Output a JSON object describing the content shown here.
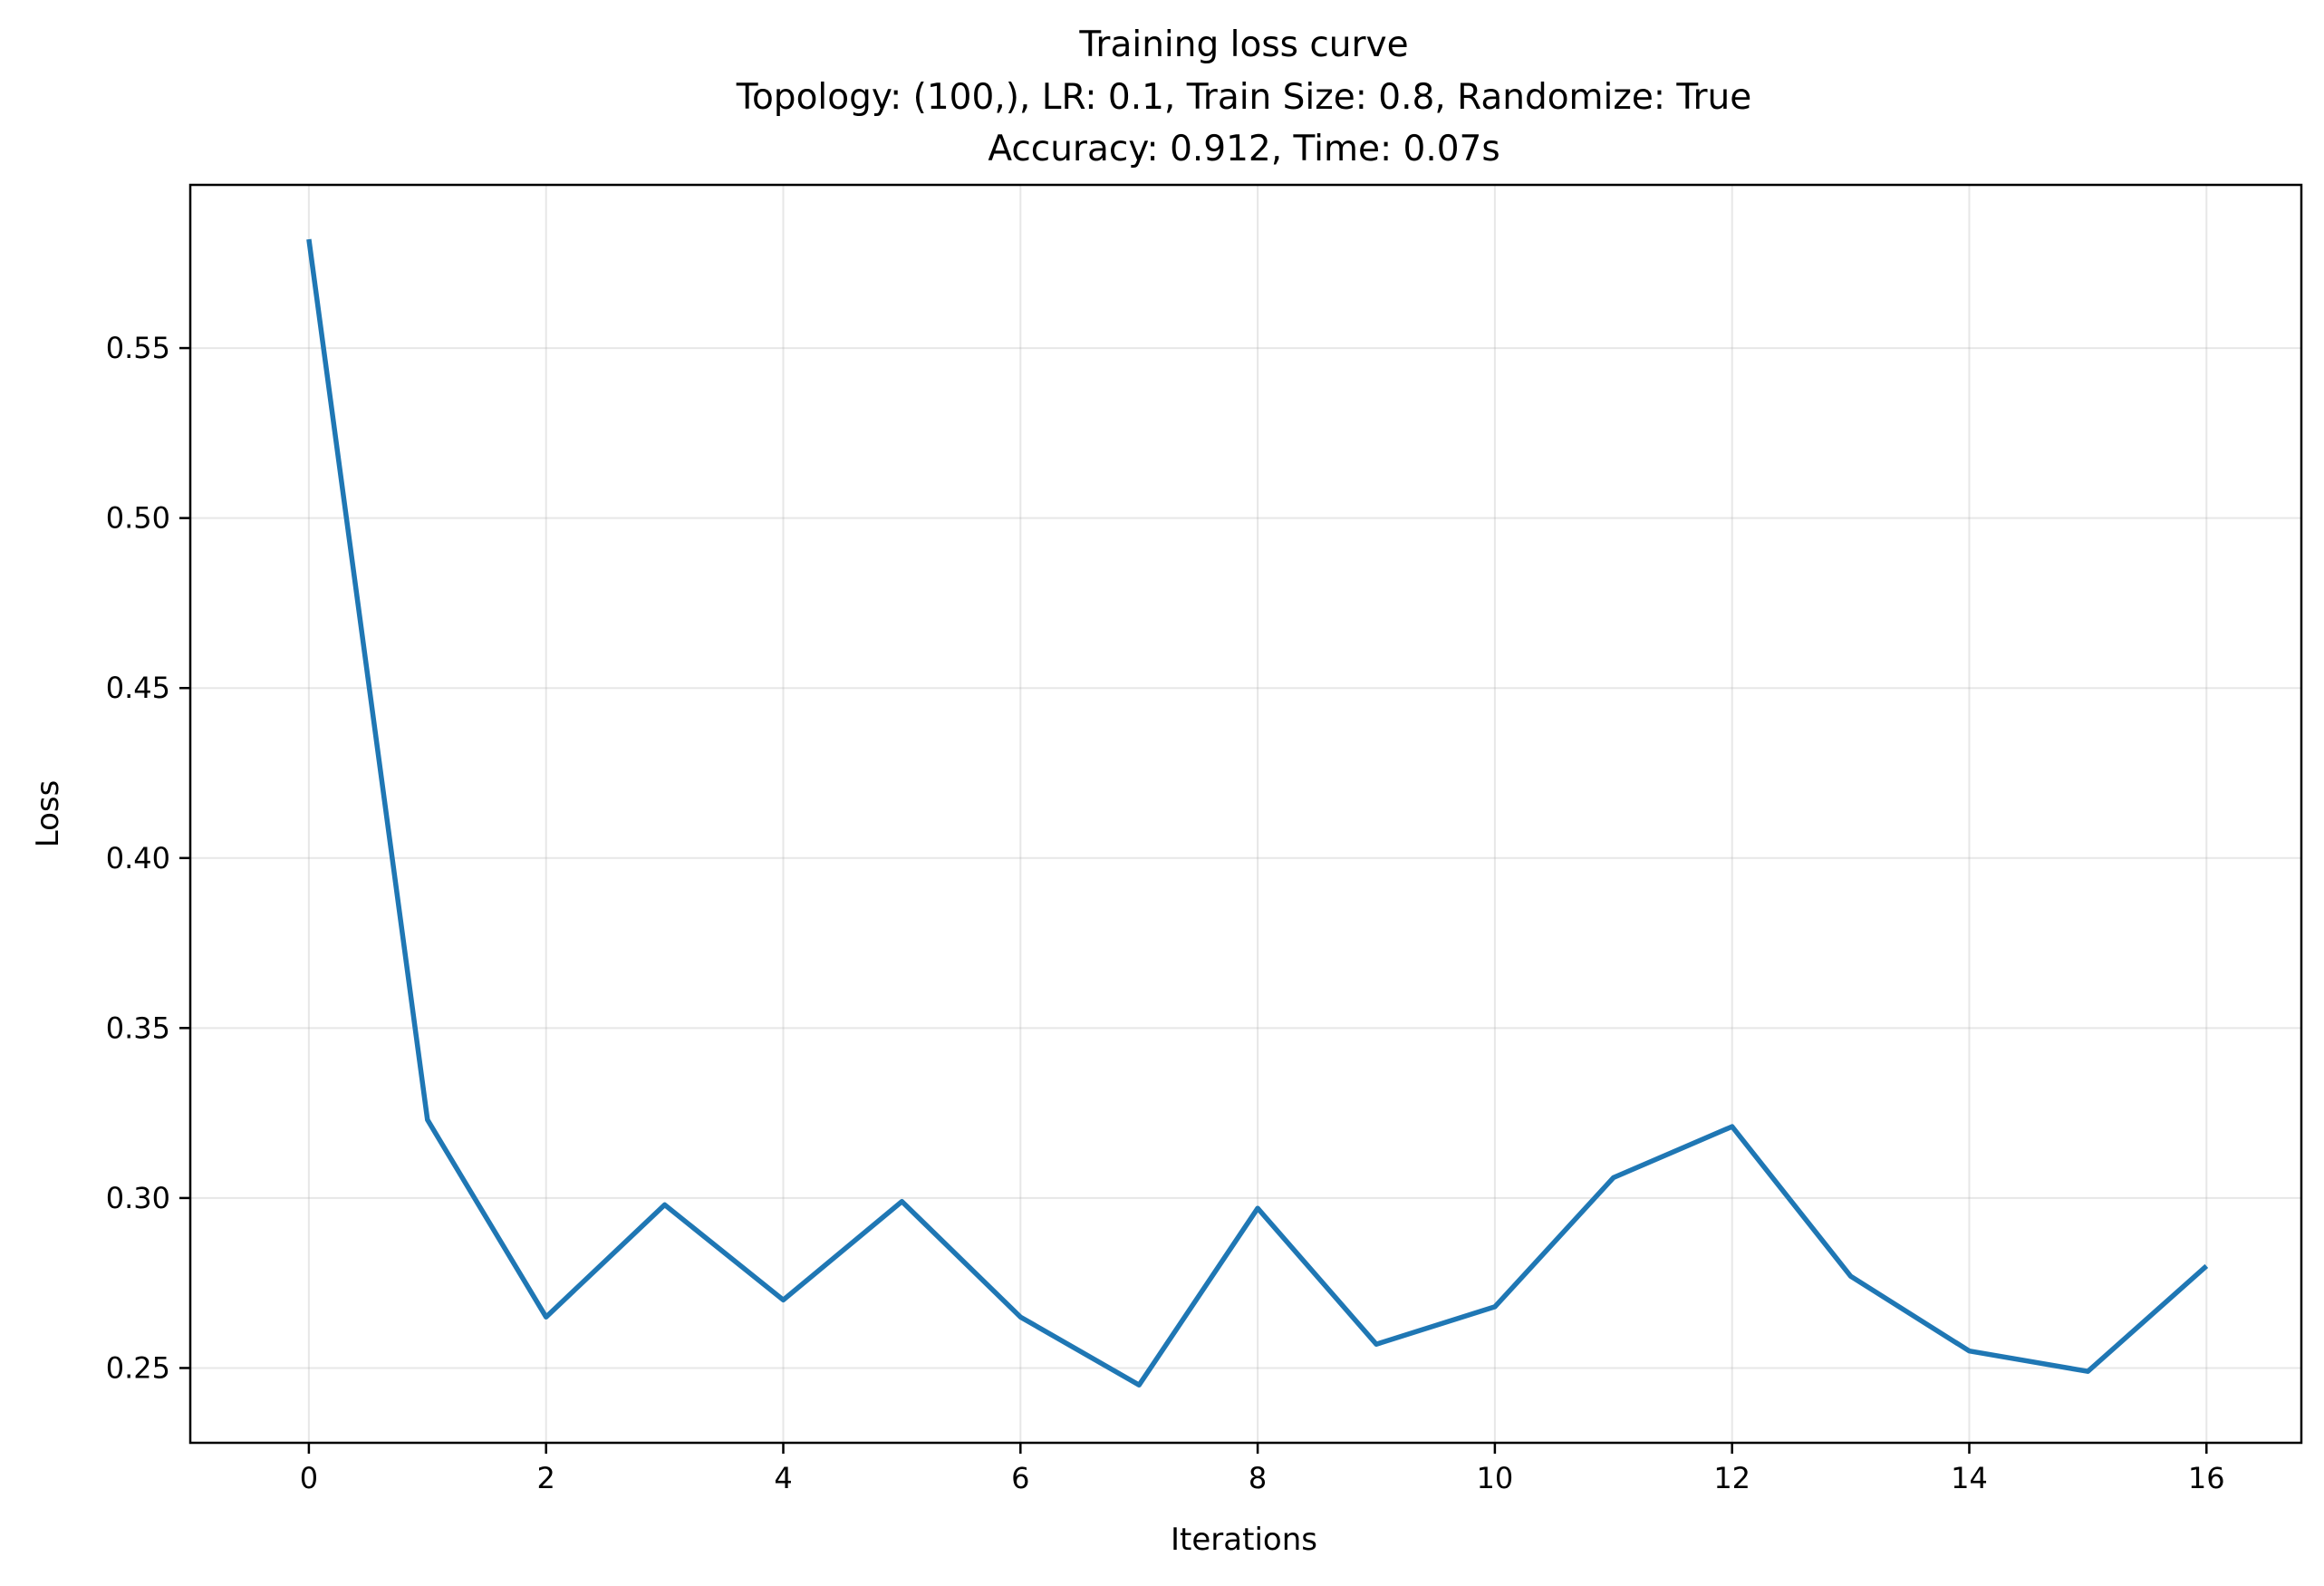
{
  "chart_data": {
    "type": "line",
    "title": "Training loss curve",
    "subtitle_lines": [
      "Topology: (100,), LR: 0.1, Train Size: 0.8, Randomize: True",
      "Accuracy: 0.912, Time: 0.07s"
    ],
    "xlabel": "Iterations",
    "ylabel": "Loss",
    "xlim": [
      -1.0,
      16.8
    ],
    "ylim": [
      0.228,
      0.598
    ],
    "xticks": [
      0,
      2,
      4,
      6,
      8,
      10,
      12,
      14,
      16
    ],
    "xtick_labels": [
      "0",
      "2",
      "4",
      "6",
      "8",
      "10",
      "12",
      "14",
      "16"
    ],
    "yticks": [
      0.25,
      0.3,
      0.35,
      0.4,
      0.45,
      0.5,
      0.55
    ],
    "ytick_labels": [
      "0.25",
      "0.30",
      "0.35",
      "0.40",
      "0.45",
      "0.50",
      "0.55"
    ],
    "grid": true,
    "series": [
      {
        "color": "#1f77b4",
        "x": [
          0,
          1,
          2,
          3,
          4,
          5,
          6,
          7,
          8,
          9,
          10,
          11,
          12,
          13,
          14,
          15,
          16
        ],
        "y": [
          0.582,
          0.323,
          0.265,
          0.298,
          0.27,
          0.299,
          0.265,
          0.245,
          0.297,
          0.257,
          0.268,
          0.306,
          0.321,
          0.277,
          0.255,
          0.249,
          0.28
        ]
      }
    ]
  }
}
